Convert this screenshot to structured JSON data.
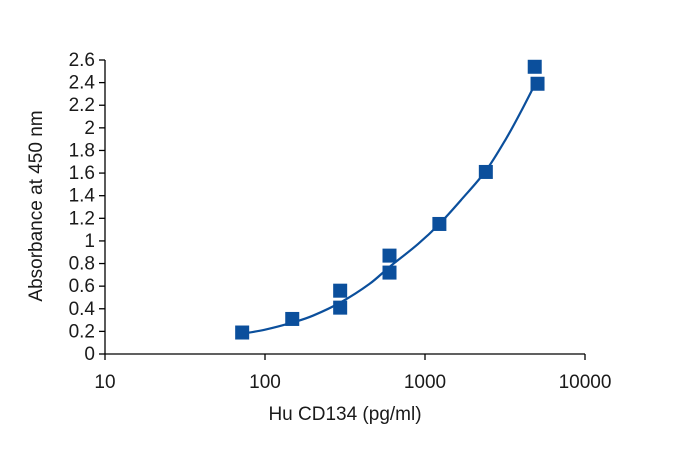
{
  "chart_data": {
    "type": "scatter",
    "title": "",
    "xlabel": "Hu CD134 (pg/ml)",
    "ylabel": "Absorbance at 450 nm",
    "x_scale": "log",
    "xlim": [
      10,
      10000
    ],
    "ylim": [
      0,
      2.6
    ],
    "x_ticks": [
      10,
      100,
      1000,
      10000
    ],
    "x_tick_labels": [
      "10",
      "100",
      "1000",
      "10000"
    ],
    "y_ticks": [
      0,
      0.2,
      0.4,
      0.6,
      0.8,
      1,
      1.2,
      1.4,
      1.6,
      1.8,
      2,
      2.2,
      2.4,
      2.6
    ],
    "y_tick_labels": [
      "0",
      "0.2",
      "0.4",
      "0.6",
      "0.8",
      "1",
      "1.2",
      "1.4",
      "1.6",
      "1.8",
      "2",
      "2.2",
      "2.4",
      "2.6"
    ],
    "grid": false,
    "legend": "none",
    "series": [
      {
        "marker": "square",
        "color": "#0b4f9c",
        "points": [
          {
            "x": 72,
            "y": 0.19
          },
          {
            "x": 148,
            "y": 0.31
          },
          {
            "x": 295,
            "y": 0.41
          },
          {
            "x": 295,
            "y": 0.56
          },
          {
            "x": 600,
            "y": 0.72
          },
          {
            "x": 600,
            "y": 0.87
          },
          {
            "x": 1230,
            "y": 1.15
          },
          {
            "x": 2400,
            "y": 1.61
          },
          {
            "x": 4850,
            "y": 2.54
          },
          {
            "x": 5050,
            "y": 2.39
          }
        ]
      }
    ],
    "fit_curve": {
      "color": "#0b4f9c",
      "points": [
        {
          "x": 72,
          "y": 0.18
        },
        {
          "x": 100,
          "y": 0.215
        },
        {
          "x": 150,
          "y": 0.28
        },
        {
          "x": 200,
          "y": 0.34
        },
        {
          "x": 300,
          "y": 0.46
        },
        {
          "x": 450,
          "y": 0.62
        },
        {
          "x": 600,
          "y": 0.77
        },
        {
          "x": 900,
          "y": 0.97
        },
        {
          "x": 1230,
          "y": 1.15
        },
        {
          "x": 1700,
          "y": 1.37
        },
        {
          "x": 2400,
          "y": 1.62
        },
        {
          "x": 3200,
          "y": 1.9
        },
        {
          "x": 4000,
          "y": 2.15
        },
        {
          "x": 5050,
          "y": 2.43
        }
      ]
    }
  }
}
